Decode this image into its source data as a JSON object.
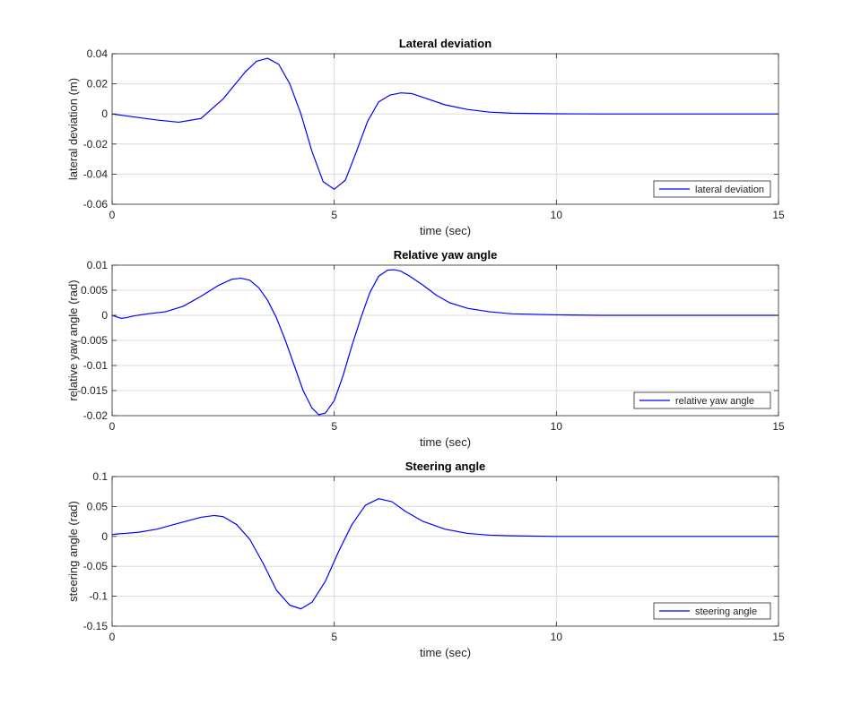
{
  "chart_data": [
    {
      "type": "line",
      "title": "Lateral deviation",
      "xlabel": "time (sec)",
      "ylabel": "lateral deviation (m)",
      "xlim": [
        0,
        15
      ],
      "ylim": [
        -0.06,
        0.04
      ],
      "xticks": [
        0,
        5,
        10,
        15
      ],
      "xtick_labels": [
        "0",
        "5",
        "10",
        "15"
      ],
      "yticks": [
        -0.06,
        -0.04,
        -0.02,
        0,
        0.02,
        0.04
      ],
      "ytick_labels": [
        "-0.06",
        "-0.04",
        "-0.02",
        "0",
        "0.02",
        "0.04"
      ],
      "grid": true,
      "legend_position": "bottom-right",
      "series": [
        {
          "name": "lateral deviation",
          "color": "#0000ff",
          "x": [
            0,
            0.5,
            1.0,
            1.5,
            2.0,
            2.5,
            3.0,
            3.25,
            3.5,
            3.75,
            4.0,
            4.25,
            4.5,
            4.75,
            5.0,
            5.25,
            5.5,
            5.75,
            6.0,
            6.25,
            6.5,
            6.75,
            7.0,
            7.5,
            8.0,
            8.5,
            9.0,
            10.0,
            11.0,
            12.0,
            13.0,
            14.0,
            15.0
          ],
          "y": [
            0,
            -0.002,
            -0.004,
            -0.0055,
            -0.003,
            0.01,
            0.028,
            0.035,
            0.037,
            0.033,
            0.02,
            0.0,
            -0.025,
            -0.045,
            -0.05,
            -0.044,
            -0.025,
            -0.005,
            0.008,
            0.0125,
            0.014,
            0.0135,
            0.011,
            0.006,
            0.003,
            0.0012,
            0.0005,
            0.0001,
            0,
            0,
            0,
            0,
            0
          ]
        }
      ]
    },
    {
      "type": "line",
      "title": "Relative yaw angle",
      "xlabel": "time (sec)",
      "ylabel": "relative yaw angle (rad)",
      "xlim": [
        0,
        15
      ],
      "ylim": [
        -0.02,
        0.01
      ],
      "xticks": [
        0,
        5,
        10,
        15
      ],
      "xtick_labels": [
        "0",
        "5",
        "10",
        "15"
      ],
      "yticks": [
        -0.02,
        -0.015,
        -0.01,
        -0.005,
        0,
        0.005,
        0.01
      ],
      "ytick_labels": [
        "-0.02",
        "-0.015",
        "-0.01",
        "-0.005",
        "0",
        "0.005",
        "0.01"
      ],
      "grid": true,
      "legend_position": "bottom-right",
      "series": [
        {
          "name": "relative yaw angle",
          "color": "#0000ff",
          "x": [
            0,
            0.1,
            0.2,
            0.3,
            0.5,
            0.8,
            1.2,
            1.6,
            2.0,
            2.4,
            2.7,
            2.9,
            3.1,
            3.3,
            3.5,
            3.7,
            3.9,
            4.1,
            4.3,
            4.5,
            4.65,
            4.8,
            5.0,
            5.2,
            5.4,
            5.6,
            5.8,
            6.0,
            6.2,
            6.35,
            6.5,
            6.7,
            7.0,
            7.3,
            7.6,
            8.0,
            8.5,
            9.0,
            10.0,
            11.0,
            12.0,
            13.0,
            14.0,
            15.0
          ],
          "y": [
            0,
            -0.0003,
            -0.0006,
            -0.0005,
            -0.0001,
            0.0003,
            0.0007,
            0.0018,
            0.0038,
            0.006,
            0.0072,
            0.0074,
            0.007,
            0.0055,
            0.003,
            -0.0005,
            -0.005,
            -0.01,
            -0.015,
            -0.0185,
            -0.0198,
            -0.0195,
            -0.017,
            -0.012,
            -0.006,
            -0.0005,
            0.0045,
            0.0078,
            0.009,
            0.0091,
            0.0088,
            0.0078,
            0.006,
            0.004,
            0.0025,
            0.0014,
            0.0007,
            0.0003,
            0.0001,
            0,
            0,
            0,
            0,
            0
          ]
        }
      ]
    },
    {
      "type": "line",
      "title": "Steering angle",
      "xlabel": "time (sec)",
      "ylabel": "steering angle (rad)",
      "xlim": [
        0,
        15
      ],
      "ylim": [
        -0.15,
        0.1
      ],
      "xticks": [
        0,
        5,
        10,
        15
      ],
      "xtick_labels": [
        "0",
        "5",
        "10",
        "15"
      ],
      "yticks": [
        -0.15,
        -0.1,
        -0.05,
        0,
        0.05,
        0.1
      ],
      "ytick_labels": [
        "-0.15",
        "-0.1",
        "-0.05",
        "0",
        "0.05",
        "0.1"
      ],
      "grid": true,
      "legend_position": "bottom-right",
      "series": [
        {
          "name": "steering angle",
          "color": "#0000ff",
          "x": [
            0,
            0.1,
            0.3,
            0.6,
            1.0,
            1.5,
            2.0,
            2.3,
            2.5,
            2.8,
            3.1,
            3.4,
            3.7,
            4.0,
            4.25,
            4.5,
            4.8,
            5.1,
            5.4,
            5.7,
            6.0,
            6.3,
            6.6,
            7.0,
            7.5,
            8.0,
            8.5,
            9.0,
            10.0,
            11.0,
            12.0,
            13.0,
            14.0,
            15.0
          ],
          "y": [
            0.003,
            0.004,
            0.005,
            0.007,
            0.012,
            0.022,
            0.032,
            0.035,
            0.033,
            0.02,
            -0.005,
            -0.045,
            -0.09,
            -0.115,
            -0.121,
            -0.11,
            -0.075,
            -0.025,
            0.02,
            0.052,
            0.063,
            0.058,
            0.042,
            0.025,
            0.012,
            0.005,
            0.002,
            0.001,
            0,
            0,
            0,
            0,
            0,
            0
          ]
        }
      ]
    }
  ]
}
